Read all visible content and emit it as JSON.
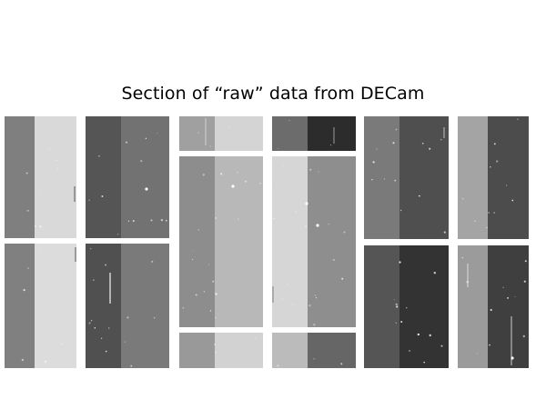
{
  "title": "Section of “raw” data from DECam",
  "colors": {
    "background": "#ffffff",
    "gap": "#ffffff",
    "text": "#000000"
  }
}
